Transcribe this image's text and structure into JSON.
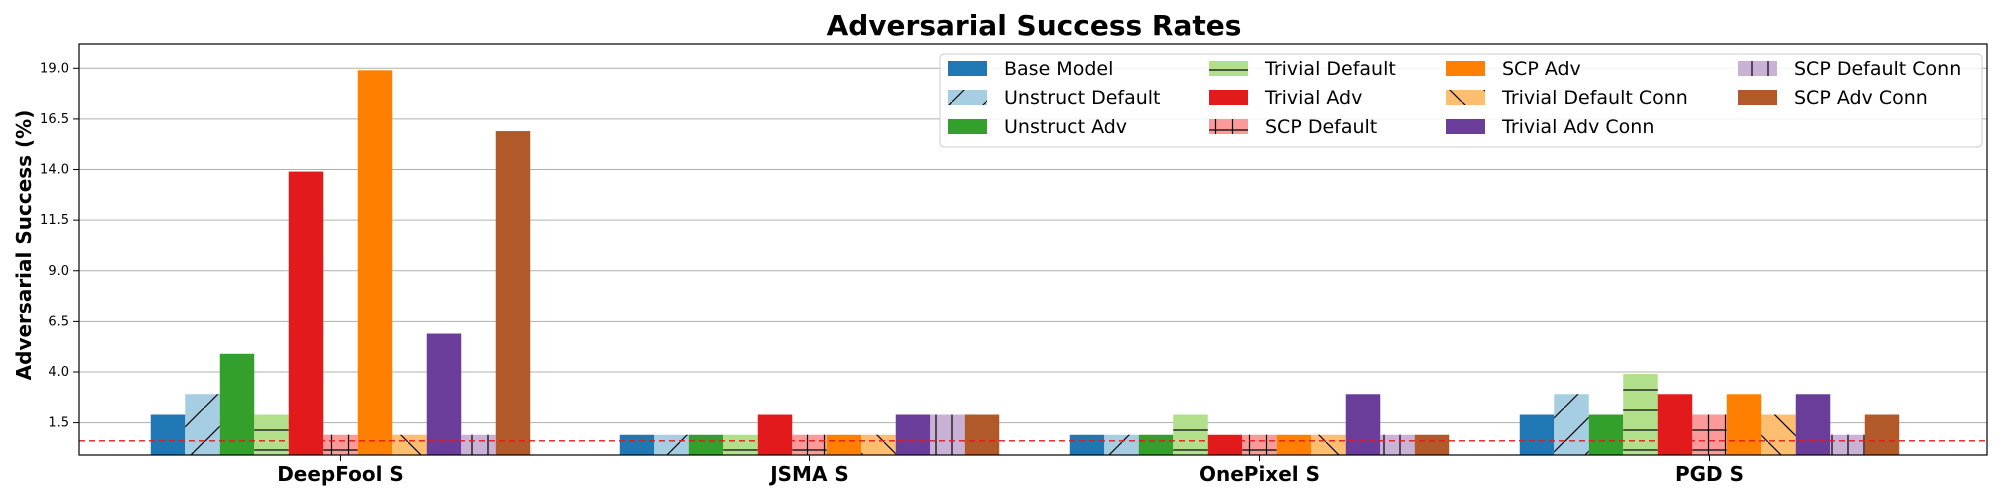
{
  "chart_data": {
    "type": "bar",
    "title": "Adversarial Success Rates",
    "xlabel": "",
    "ylabel": "Adversarial Success (%)",
    "ylim": [
      -0.1,
      20.2
    ],
    "yticks": [
      "1.5",
      "4.0",
      "6.5",
      "9.0",
      "11.5",
      "14.0",
      "16.5",
      "19.0"
    ],
    "grid": "y",
    "reference_line": {
      "value": 0.6,
      "style": "dashed",
      "color": "#e31a1c"
    },
    "legend": {
      "position": "top-right",
      "columns": 4
    },
    "categories": [
      "DeepFool S",
      "JSMA S",
      "OnePixel S",
      "PGD S"
    ],
    "series": [
      {
        "name": "Base Model",
        "color": "#1f78b4",
        "hatch": "",
        "values": [
          1.9,
          0.9,
          0.9,
          1.9
        ]
      },
      {
        "name": "Unstruct Default",
        "color": "#a6cee3",
        "hatch": "diag",
        "values": [
          2.9,
          0.9,
          0.9,
          2.9
        ]
      },
      {
        "name": "Unstruct Adv",
        "color": "#33a02c",
        "hatch": "",
        "values": [
          4.9,
          0.9,
          0.9,
          1.9
        ]
      },
      {
        "name": "Trivial Default",
        "color": "#b2df8a",
        "hatch": "horiz",
        "values": [
          1.9,
          0.9,
          1.9,
          3.9
        ]
      },
      {
        "name": "Trivial Adv",
        "color": "#e31a1c",
        "hatch": "",
        "values": [
          13.9,
          1.9,
          0.9,
          2.9
        ]
      },
      {
        "name": "SCP Default",
        "color": "#fb9a99",
        "hatch": "cross",
        "values": [
          0.9,
          0.9,
          0.9,
          1.9
        ]
      },
      {
        "name": "SCP Adv",
        "color": "#ff7f00",
        "hatch": "",
        "values": [
          18.9,
          0.9,
          0.9,
          2.9
        ]
      },
      {
        "name": "Trivial Default Conn",
        "color": "#fdbf6f",
        "hatch": "back",
        "values": [
          0.9,
          0.9,
          0.9,
          1.9
        ]
      },
      {
        "name": "Trivial Adv Conn",
        "color": "#6a3d9a",
        "hatch": "",
        "values": [
          5.9,
          1.9,
          2.9,
          2.9
        ]
      },
      {
        "name": "SCP Default Conn",
        "color": "#cab2d6",
        "hatch": "vert",
        "values": [
          0.9,
          1.9,
          0.9,
          0.9
        ]
      },
      {
        "name": "SCP Adv Conn",
        "color": "#b15928",
        "hatch": "",
        "values": [
          15.9,
          1.9,
          0.9,
          1.9
        ]
      }
    ]
  }
}
